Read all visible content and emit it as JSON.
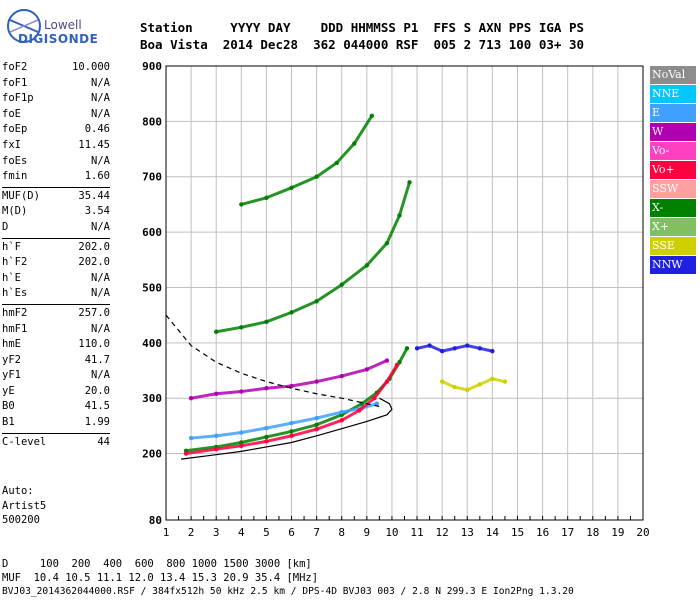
{
  "logo": {
    "line1": "Lowell",
    "line2": "DIGISONDE"
  },
  "header": {
    "row1": "Station     YYYY DAY    DDD HHMMSS P1  FFS S AXN PPS IGA PS",
    "row2": "Boa Vista  2014 Dec28  362 044000 RSF  005 2 713 100 03+ 30"
  },
  "params_group1": [
    {
      "name": "foF2",
      "value": "10.000"
    },
    {
      "name": "foF1",
      "value": "N/A"
    },
    {
      "name": "foF1p",
      "value": "N/A"
    },
    {
      "name": "foE",
      "value": "N/A"
    },
    {
      "name": "foEp",
      "value": "0.46"
    },
    {
      "name": "fxI",
      "value": "11.45"
    },
    {
      "name": "foEs",
      "value": "N/A"
    },
    {
      "name": "fmin",
      "value": "1.60"
    }
  ],
  "params_group2": [
    {
      "name": "MUF(D)",
      "value": "35.44"
    },
    {
      "name": "M(D)",
      "value": "3.54"
    },
    {
      "name": "D",
      "value": "N/A"
    }
  ],
  "params_group3": [
    {
      "name": "h`F",
      "value": "202.0"
    },
    {
      "name": "h`F2",
      "value": "202.0"
    },
    {
      "name": "h`E",
      "value": "N/A"
    },
    {
      "name": "h`Es",
      "value": "N/A"
    }
  ],
  "params_group4": [
    {
      "name": "hmF2",
      "value": "257.0"
    },
    {
      "name": "hmF1",
      "value": "N/A"
    },
    {
      "name": "hmE",
      "value": "110.0"
    },
    {
      "name": "yF2",
      "value": "41.7"
    },
    {
      "name": "yF1",
      "value": "N/A"
    },
    {
      "name": "yE",
      "value": "20.0"
    },
    {
      "name": "B0",
      "value": "41.5"
    },
    {
      "name": "B1",
      "value": "1.99"
    }
  ],
  "params_group5": [
    {
      "name": "C-level",
      "value": "44"
    }
  ],
  "auto": {
    "line1": "Auto:",
    "line2": "Artist5",
    "line3": "500200"
  },
  "legend": [
    {
      "label": "NoVal",
      "color": "#8c8c8c"
    },
    {
      "label": "NNE",
      "color": "#00c8ff"
    },
    {
      "label": "E",
      "color": "#40a0ff"
    },
    {
      "label": "W",
      "color": "#b000b0"
    },
    {
      "label": "Vo-",
      "color": "#ff40c0"
    },
    {
      "label": "Vo+",
      "color": "#ff0040"
    },
    {
      "label": "SSW",
      "color": "#ffa0a0"
    },
    {
      "label": "X-",
      "color": "#008000"
    },
    {
      "label": "X+",
      "color": "#80c060"
    },
    {
      "label": "SSE",
      "color": "#d0d000"
    },
    {
      "label": "NNW",
      "color": "#2020e0"
    }
  ],
  "footer": {
    "row1": "D     100  200  400  600  800 1000 1500 3000 [km]",
    "row2": "MUF  10.4 10.5 11.1 12.0 13.4 15.3 20.9 35.4 [MHz]",
    "row3": "BVJ03_2014362044000.RSF / 384fx512h 50 kHz 2.5 km / DPS-4D BVJ03 003 / 2.8 N 299.3 E Ion2Png 1.3.20"
  },
  "chart_data": {
    "type": "scatter",
    "xlim": [
      1,
      20
    ],
    "ylim": [
      80,
      900
    ],
    "x_ticks": [
      1,
      2,
      3,
      4,
      5,
      6,
      7,
      8,
      9,
      10,
      11,
      12,
      13,
      14,
      15,
      16,
      17,
      18,
      19,
      20
    ],
    "y_ticks": [
      80,
      200,
      300,
      400,
      500,
      600,
      700,
      800,
      900
    ],
    "grid": true,
    "series": [
      {
        "name": "X-",
        "color": "#008000",
        "traces": [
          {
            "x": [
              1.8,
              3,
              4,
              5,
              6,
              7,
              8,
              8.8,
              9.4,
              9.9,
              10.3,
              10.6
            ],
            "y": [
              205,
              212,
              220,
              230,
              240,
              252,
              270,
              290,
              310,
              335,
              365,
              390
            ]
          },
          {
            "x": [
              3,
              4,
              5,
              6,
              7,
              8,
              9,
              9.8,
              10.3,
              10.7
            ],
            "y": [
              420,
              428,
              438,
              455,
              475,
              505,
              540,
              580,
              630,
              690
            ]
          },
          {
            "x": [
              4,
              5,
              6,
              7,
              7.8,
              8.5,
              9.2
            ],
            "y": [
              650,
              662,
              680,
              700,
              725,
              760,
              810
            ]
          }
        ]
      },
      {
        "name": "E",
        "color": "#40a0ff",
        "traces": [
          {
            "x": [
              2,
              3,
              4,
              5,
              6,
              7,
              8,
              8.8,
              9.4
            ],
            "y": [
              228,
              232,
              238,
              246,
              255,
              264,
              275,
              282,
              290
            ]
          }
        ]
      },
      {
        "name": "Vo+",
        "color": "#ff0040",
        "traces": [
          {
            "x": [
              1.8,
              3,
              4,
              5,
              6,
              7,
              8,
              8.7,
              9.3,
              9.8,
              10.2
            ],
            "y": [
              200,
              208,
              214,
              222,
              232,
              244,
              260,
              278,
              300,
              330,
              360
            ]
          }
        ]
      },
      {
        "name": "W",
        "color": "#b000b0",
        "traces": [
          {
            "x": [
              2,
              3,
              4,
              5,
              6,
              7,
              8,
              9,
              9.8
            ],
            "y": [
              300,
              308,
              312,
              318,
              322,
              330,
              340,
              352,
              368
            ]
          }
        ]
      },
      {
        "name": "NNW",
        "color": "#2020e0",
        "traces": [
          {
            "x": [
              11,
              11.5,
              12,
              12.5,
              13,
              13.5,
              14
            ],
            "y": [
              390,
              395,
              385,
              390,
              395,
              390,
              385
            ]
          }
        ]
      },
      {
        "name": "SSE",
        "color": "#d0d000",
        "traces": [
          {
            "x": [
              12,
              12.5,
              13,
              13.5,
              14,
              14.5
            ],
            "y": [
              330,
              320,
              315,
              325,
              335,
              330
            ]
          }
        ]
      }
    ],
    "profile_solid": {
      "x": [
        1.6,
        3,
        4,
        5,
        6,
        7,
        8,
        9,
        9.8,
        10,
        9.9,
        9.5
      ],
      "y": [
        190,
        198,
        204,
        212,
        220,
        232,
        245,
        258,
        270,
        280,
        290,
        300
      ]
    },
    "profile_dashed": {
      "x": [
        1,
        2,
        3,
        4,
        5,
        6,
        7,
        8,
        9,
        9.5
      ],
      "y": [
        450,
        395,
        365,
        345,
        330,
        318,
        308,
        300,
        290,
        285
      ]
    }
  }
}
